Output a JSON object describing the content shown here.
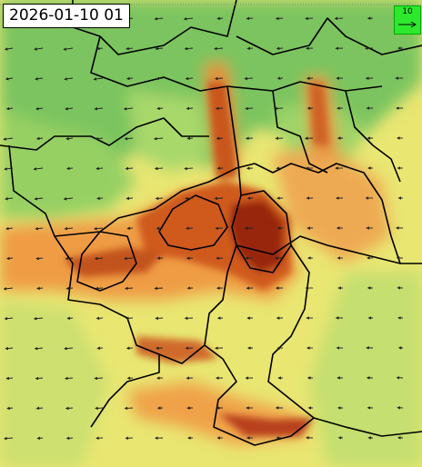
{
  "map": {
    "timestamp": "2026-01-10 01",
    "wind_legend": {
      "value": "10",
      "color": "#2ee82e"
    },
    "palette": {
      "green": "#7fc860",
      "light_green": "#b9dc6e",
      "yellow": "#eee876",
      "orange": "#efa040",
      "dark_orange": "#d9641f",
      "red": "#b33512",
      "dark_red": "#8a1e0e",
      "border": "#000000"
    },
    "icons": [
      "wind-arrow-icon"
    ]
  }
}
